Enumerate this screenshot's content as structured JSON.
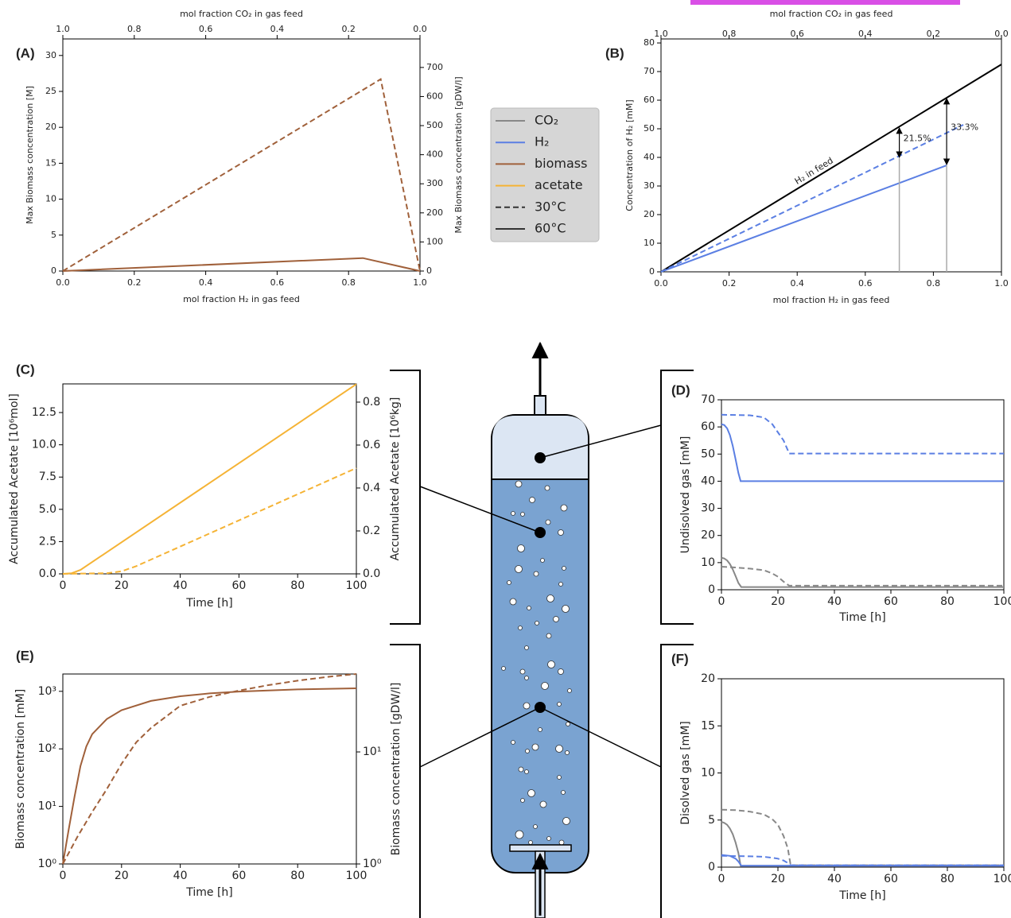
{
  "chart_data": [
    {
      "type": "line",
      "panel": "(A)",
      "xlabel": "mol fraction H₂ in gas feed",
      "x2label": "mol fraction CO₂ in gas feed",
      "ylabel": "Max Biomass concentration [M]",
      "y2label": "Max Biomass concentration [gDW/l]",
      "xlim": [
        0,
        1
      ],
      "xticks": [
        {
          "value": 0,
          "label": "0.0"
        },
        0.2,
        0.4,
        0.6,
        0.8,
        {
          "value": 1,
          "label": "1.0"
        }
      ],
      "x2lim": [
        1,
        0
      ],
      "x2ticks": [
        {
          "value": 1,
          "label": "1.0"
        },
        0.8,
        0.6,
        0.4,
        0.2,
        {
          "value": 0,
          "label": "0.0"
        }
      ],
      "ylim": [
        0,
        32.3
      ],
      "yticks": [
        0,
        5,
        10,
        15,
        20,
        25,
        30
      ],
      "y2lim": [
        0,
        798
      ],
      "y2ticks": [
        0,
        100,
        200,
        300,
        400,
        500,
        600,
        700
      ],
      "series": [
        {
          "color": "#a0603a",
          "dash": "dashed",
          "x": [
            0,
            0.89,
            1
          ],
          "values": [
            0,
            26.7,
            0
          ]
        },
        {
          "color": "#a0603a",
          "dash": "solid",
          "x": [
            0,
            0.84,
            1
          ],
          "values": [
            0,
            1.8,
            0
          ]
        }
      ],
      "legend": [
        {
          "label": "CO₂",
          "color": "#888888",
          "dash": "solid"
        },
        {
          "label": "H₂",
          "color": "#5b7fe3",
          "dash": "solid"
        },
        {
          "label": "biomass",
          "color": "#a0603a",
          "dash": "solid"
        },
        {
          "label": "acetate",
          "color": "#f5b335",
          "dash": "solid"
        },
        {
          "label": "30°C",
          "color": "#333333",
          "dash": "dashed"
        },
        {
          "label": "60°C",
          "color": "#333333",
          "dash": "solid"
        }
      ]
    },
    {
      "type": "line",
      "panel": "(B)",
      "xlabel": "mol fraction H₂ in gas feed",
      "x2label": "mol fraction CO₂ in gas feed",
      "ylabel": "Concentration of H₂ [mM]",
      "xlim": [
        0,
        1
      ],
      "xticks": [
        {
          "value": 0,
          "label": "0.0"
        },
        0.2,
        0.4,
        0.6,
        0.8,
        {
          "value": 1,
          "label": "1.0"
        }
      ],
      "x2lim": [
        1,
        0
      ],
      "x2ticks": [
        {
          "value": 1,
          "label": "1.0"
        },
        0.8,
        0.6,
        0.4,
        0.2,
        {
          "value": 0,
          "label": "0.0"
        }
      ],
      "ylim": [
        0,
        81.4
      ],
      "yticks": [
        0,
        10,
        20,
        30,
        40,
        50,
        60,
        70,
        80
      ],
      "series": [
        {
          "label": "H₂ in feed",
          "color": "#000000",
          "dash": "solid",
          "x": [
            0,
            1
          ],
          "values": [
            0,
            72.5
          ]
        },
        {
          "color": "#5b7fe3",
          "dash": "dashed",
          "x": [
            0,
            0.888
          ],
          "values": [
            0,
            51.4
          ]
        },
        {
          "color": "#5b7fe3",
          "dash": "solid",
          "x": [
            0,
            0.839
          ],
          "values": [
            0,
            37.2
          ]
        }
      ],
      "annotations": [
        {
          "text": "21.5%",
          "x": 0.7,
          "y_from": 39.7,
          "y_to": 50.6
        },
        {
          "text": "33.3%",
          "x": 0.839,
          "y_from": 37.2,
          "y_to": 60.9
        }
      ]
    },
    {
      "type": "line",
      "panel": "(C)",
      "xlabel": "Time [h]",
      "ylabel": "Accumulated Acetate [10⁶mol]",
      "y2label": "Accumulated Acetate [10⁶kg]",
      "xlim": [
        0,
        100
      ],
      "xticks": [
        0,
        20,
        40,
        60,
        80,
        100
      ],
      "ylim": [
        0,
        14.72
      ],
      "yticks": [
        {
          "value": 0,
          "label": "0.0"
        },
        2.5,
        {
          "value": 5,
          "label": "5.0"
        },
        7.5,
        {
          "value": 10,
          "label": "10.0"
        },
        12.5
      ],
      "y2lim": [
        0,
        0.885
      ],
      "y2ticks": [
        {
          "value": 0,
          "label": "0.0"
        },
        0.2,
        0.4,
        0.6,
        0.8
      ],
      "series": [
        {
          "color": "#f5b335",
          "dash": "solid",
          "x": [
            0,
            3,
            6,
            100
          ],
          "values": [
            0,
            0.05,
            0.3,
            14.7
          ]
        },
        {
          "color": "#f5b335",
          "dash": "dashed",
          "x": [
            0,
            15,
            20,
            25,
            100
          ],
          "values": [
            0,
            0.05,
            0.2,
            0.6,
            8.2
          ]
        }
      ]
    },
    {
      "type": "line",
      "panel": "(D)",
      "xlabel": "Time [h]",
      "ylabel": "Undisolved gas [mM]",
      "xlim": [
        0,
        100
      ],
      "xticks": [
        0,
        20,
        40,
        60,
        80,
        100
      ],
      "ylim": [
        0,
        70
      ],
      "yticks": [
        0,
        10,
        20,
        30,
        40,
        50,
        60,
        70
      ],
      "series": [
        {
          "color": "#5b7fe3",
          "dash": "dashed",
          "x": [
            0,
            10,
            15,
            18,
            20,
            22,
            24,
            100
          ],
          "values": [
            64.5,
            64.3,
            63.5,
            61,
            58,
            55,
            50.2,
            50.2
          ]
        },
        {
          "color": "#5b7fe3",
          "dash": "solid",
          "x": [
            0,
            1,
            2,
            3,
            4,
            5,
            6,
            6.8,
            100
          ],
          "values": [
            61,
            60.7,
            59.5,
            57,
            53,
            48,
            43,
            40,
            40
          ]
        },
        {
          "color": "#888888",
          "dash": "dashed",
          "x": [
            0,
            5,
            10,
            15,
            18,
            20,
            22,
            24,
            100
          ],
          "values": [
            8.5,
            8.2,
            7.8,
            7.2,
            6,
            4.8,
            3,
            1.5,
            1.5
          ]
        },
        {
          "color": "#888888",
          "dash": "solid",
          "x": [
            0,
            1,
            2,
            3,
            4,
            5,
            6,
            7,
            100
          ],
          "values": [
            11.8,
            11.5,
            10.8,
            9.5,
            7.5,
            5,
            2.5,
            1,
            1
          ]
        }
      ]
    },
    {
      "type": "line",
      "panel": "(E)",
      "xlabel": "Time [h]",
      "ylabel": "Biomass concentration [mM]",
      "y2label": "Biomass concentration [gDW/l]",
      "xlim": [
        0,
        100
      ],
      "xticks": [
        0,
        20,
        40,
        60,
        80,
        100
      ],
      "yscale": "log",
      "ylim": [
        1,
        2000
      ],
      "yticks": [
        {
          "value": 1,
          "label": "10⁰"
        },
        {
          "value": 10,
          "label": "10¹"
        },
        {
          "value": 100,
          "label": "10²"
        },
        {
          "value": 1000,
          "label": "10³"
        }
      ],
      "y2scale": "log",
      "y2lim": [
        1,
        49.6
      ],
      "y2ticks": [
        {
          "value": 1,
          "label": "10⁰"
        },
        {
          "value": 10,
          "label": "10¹"
        }
      ],
      "series": [
        {
          "color": "#a0603a",
          "dash": "solid",
          "x": [
            0,
            2,
            4,
            6,
            8,
            10,
            15,
            20,
            30,
            40,
            50,
            60,
            80,
            100
          ],
          "values": [
            1,
            4,
            15,
            50,
            110,
            180,
            330,
            470,
            680,
            820,
            920,
            990,
            1080,
            1130
          ]
        },
        {
          "color": "#a0603a",
          "dash": "dashed",
          "x": [
            0,
            5,
            10,
            15,
            20,
            25,
            30,
            40,
            50,
            60,
            70,
            80,
            90,
            100
          ],
          "values": [
            1,
            3,
            8,
            20,
            55,
            130,
            230,
            560,
            800,
            1030,
            1280,
            1530,
            1780,
            2000
          ]
        }
      ]
    },
    {
      "type": "line",
      "panel": "(F)",
      "xlabel": "Time [h]",
      "ylabel": "Disolved gas [mM]",
      "xlim": [
        0,
        100
      ],
      "xticks": [
        0,
        20,
        40,
        60,
        80,
        100
      ],
      "ylim": [
        0,
        20
      ],
      "yticks": [
        0,
        5,
        10,
        15,
        20
      ],
      "series": [
        {
          "color": "#888888",
          "dash": "dashed",
          "x": [
            0,
            5,
            10,
            15,
            18,
            20,
            22,
            23.5,
            24.5,
            100
          ],
          "values": [
            6.1,
            6.05,
            5.9,
            5.6,
            5.1,
            4.5,
            3.3,
            2,
            0.2,
            0.2
          ]
        },
        {
          "color": "#888888",
          "dash": "solid",
          "x": [
            0,
            1,
            2,
            3,
            4,
            5,
            6,
            6.8,
            100
          ],
          "values": [
            4.8,
            4.7,
            4.5,
            4.1,
            3.5,
            2.6,
            1.5,
            0.15,
            0.15
          ]
        },
        {
          "color": "#5b7fe3",
          "dash": "dashed",
          "x": [
            0,
            10,
            15,
            18,
            20,
            22,
            24,
            24.5,
            100
          ],
          "values": [
            1.2,
            1.15,
            1.1,
            1,
            0.9,
            0.7,
            0.35,
            0.2,
            0.2
          ]
        },
        {
          "color": "#5b7fe3",
          "dash": "solid",
          "x": [
            0,
            3,
            5,
            6,
            7,
            100
          ],
          "values": [
            1.3,
            1.2,
            0.9,
            0.6,
            0.15,
            0.15
          ]
        }
      ]
    }
  ]
}
